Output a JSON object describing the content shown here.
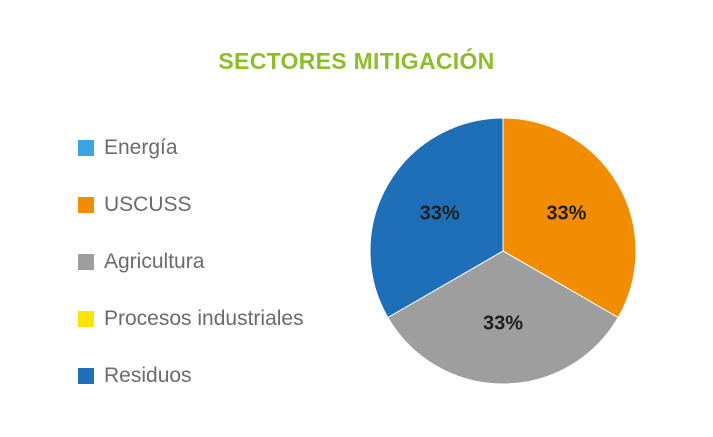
{
  "chart_data": {
    "type": "pie",
    "title": "SECTORES MITIGACIÓN",
    "title_color": "#8ebd2a",
    "legend_position": "left",
    "categories": [
      "Energía",
      "USCUSS",
      "Agricultura",
      "Procesos industriales",
      "Residuos"
    ],
    "values": [
      0,
      33,
      33,
      0,
      33
    ],
    "data_labels": [
      "",
      "33%",
      "33%",
      "",
      "33%"
    ],
    "colors": [
      "#3aa6e0",
      "#f28c00",
      "#9e9e9e",
      "#ffe500",
      "#1f6fb8"
    ]
  }
}
